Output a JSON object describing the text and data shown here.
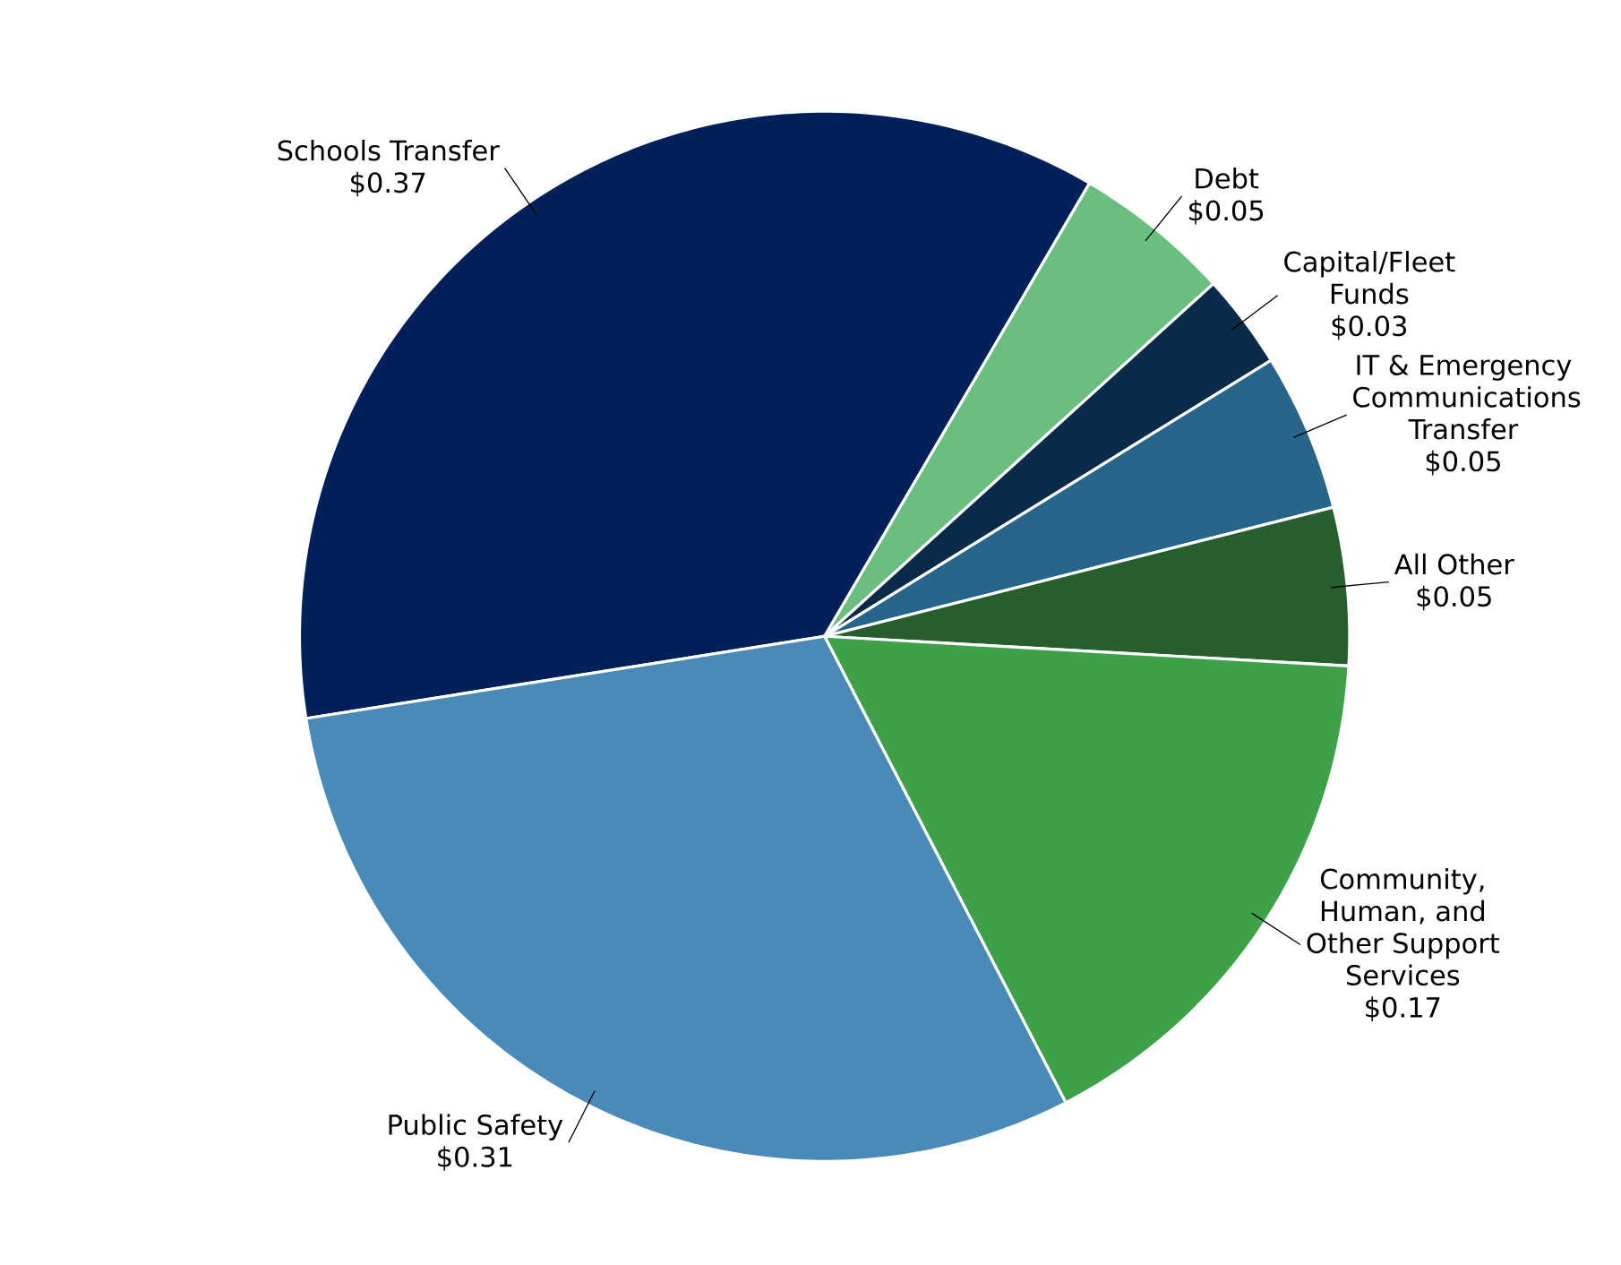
{
  "chart_data": {
    "type": "pie",
    "categories": [
      "Schools Transfer",
      "Debt",
      "Capital/Fleet Funds",
      "IT & Emergency Communications Transfer",
      "All Other",
      "Community, Human, and Other Support Services",
      "Public Safety"
    ],
    "values": [
      0.37,
      0.05,
      0.03,
      0.05,
      0.05,
      0.17,
      0.31
    ],
    "value_labels": [
      "$0.37",
      "$0.05",
      "$0.03",
      "$0.05",
      "$0.05",
      "$0.17",
      "$0.31"
    ],
    "colors": [
      "#00205b",
      "#6abf80",
      "#0a2a4a",
      "#27668a",
      "#265e2e",
      "#3fa04a",
      "#4a8ab8"
    ]
  }
}
